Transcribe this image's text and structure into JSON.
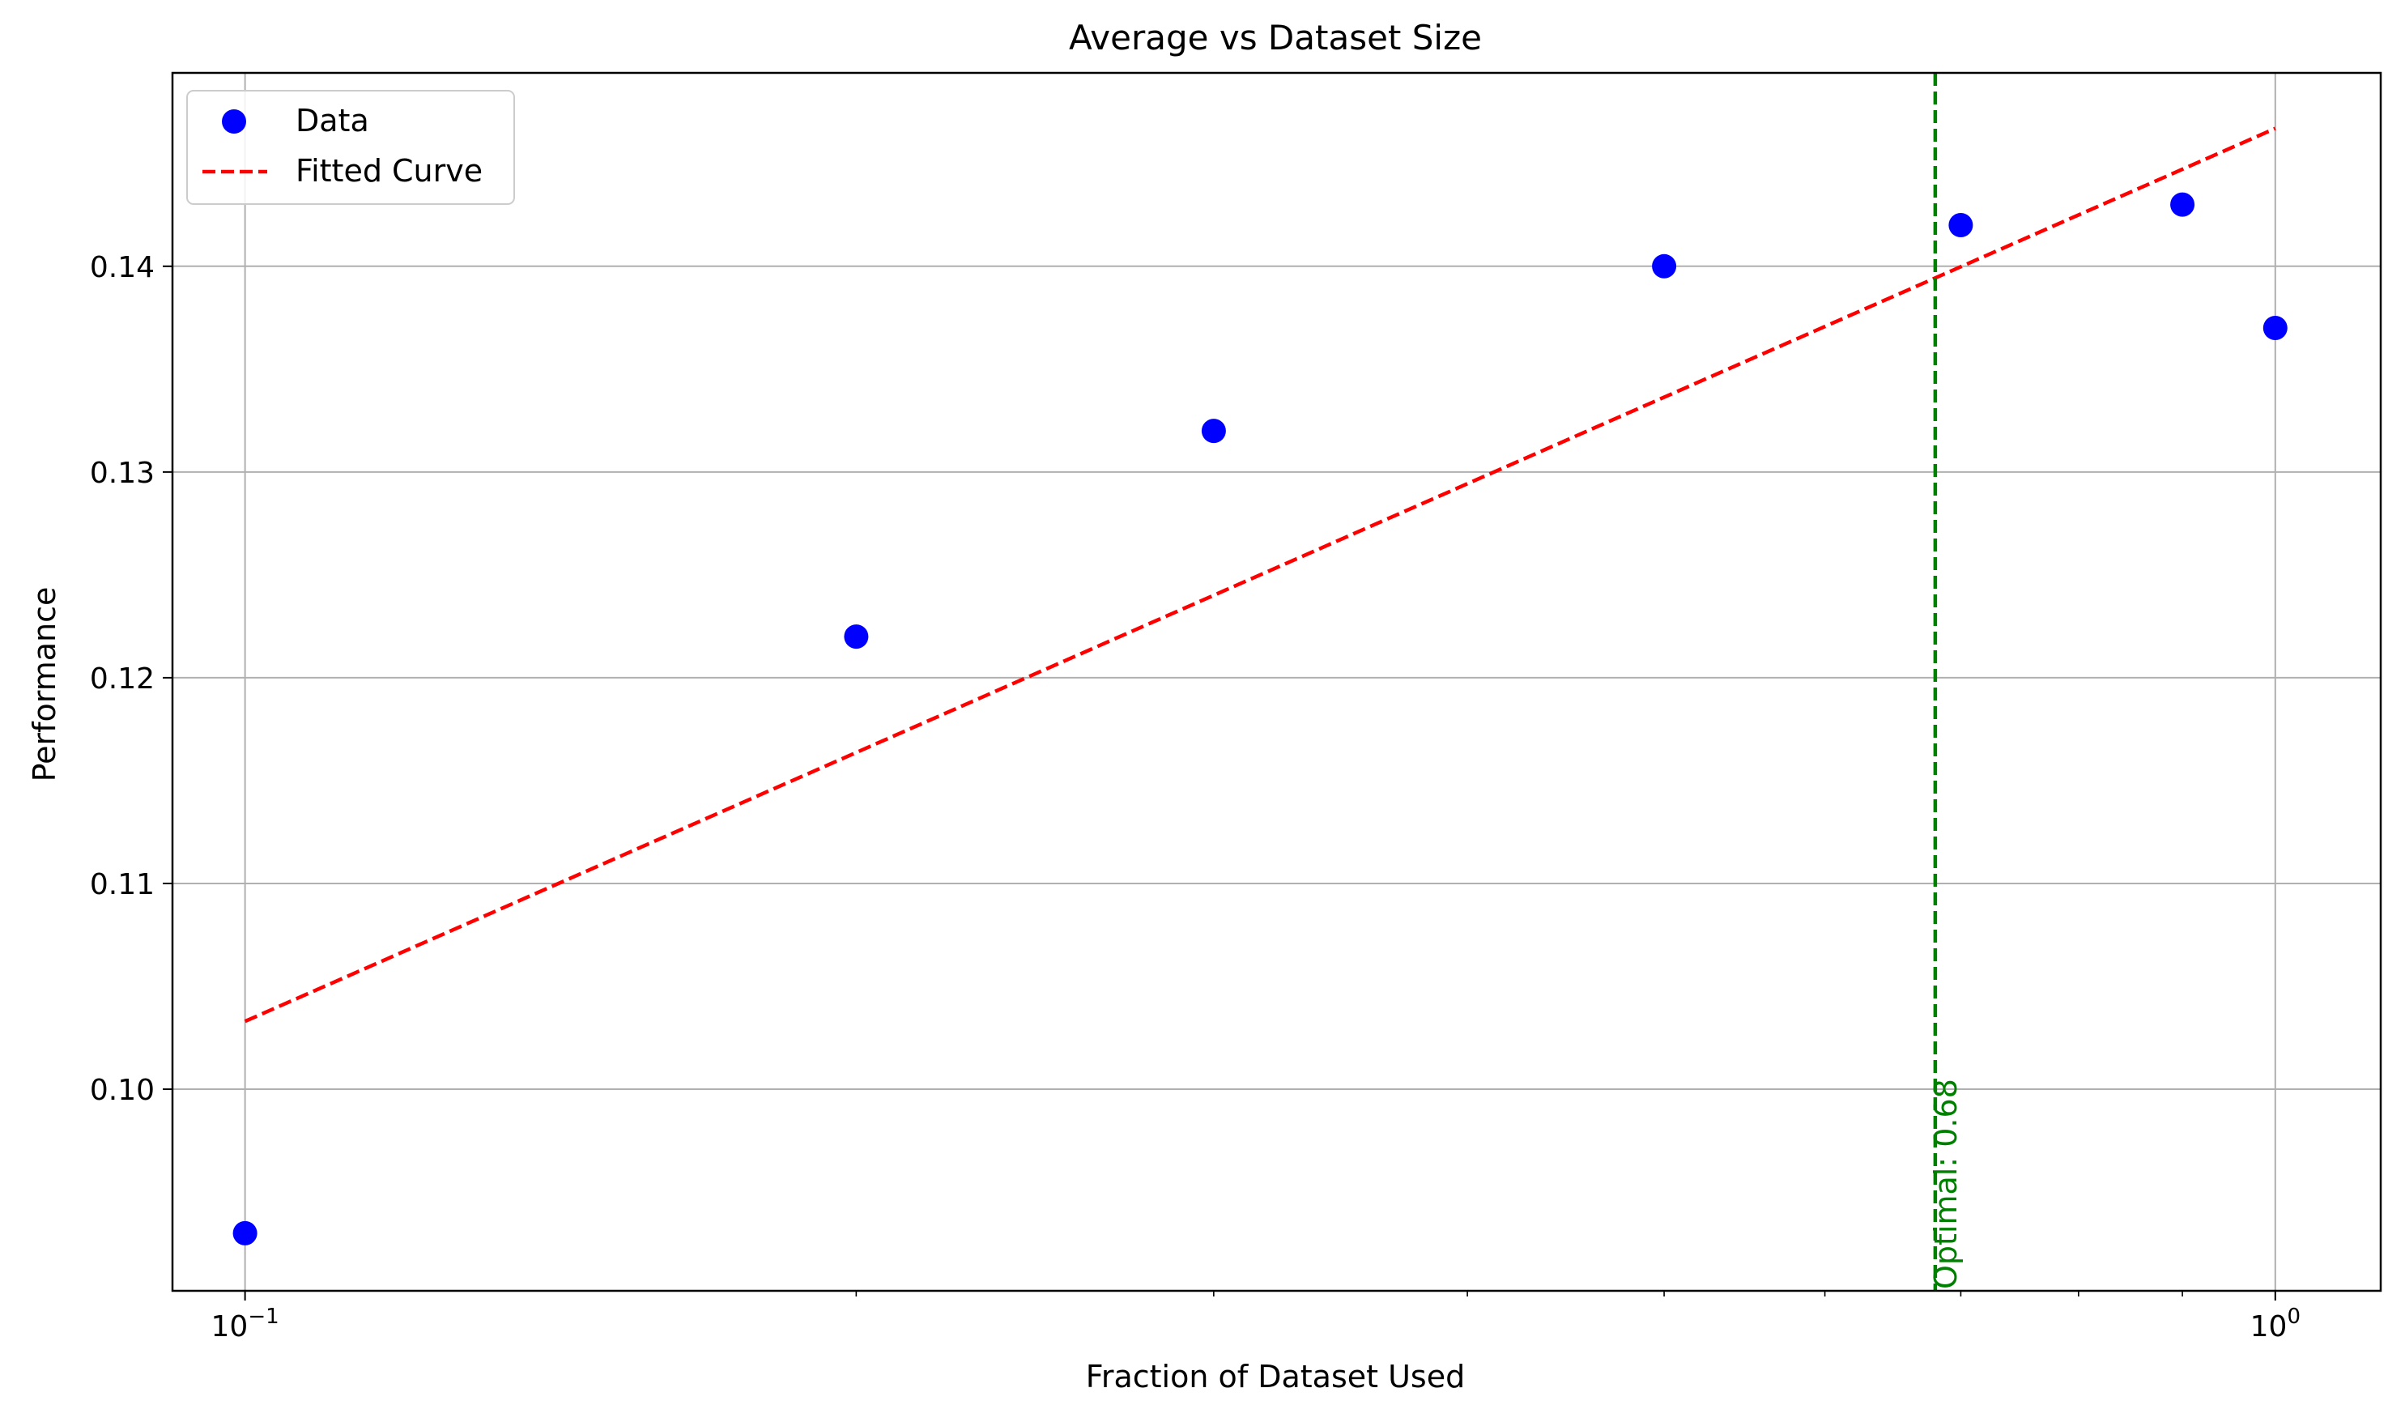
{
  "chart_data": {
    "type": "scatter",
    "title": "Average vs Dataset Size",
    "xlabel": "Fraction of Dataset Used",
    "ylabel": "Performance",
    "xscale": "log",
    "xlim": [
      0.0921,
      1.127
    ],
    "ylim": [
      0.0902,
      0.1494
    ],
    "x_ticks": [
      {
        "value": 0.1,
        "base": "10",
        "exponent": "−1"
      },
      {
        "value": 1.0,
        "base": "10",
        "exponent": "0"
      }
    ],
    "x_minor_ticks": [
      0.2,
      0.3,
      0.4,
      0.5,
      0.6,
      0.7,
      0.8,
      0.9
    ],
    "y_ticks": [
      {
        "value": 0.1,
        "label": "0.10"
      },
      {
        "value": 0.11,
        "label": "0.11"
      },
      {
        "value": 0.12,
        "label": "0.12"
      },
      {
        "value": 0.13,
        "label": "0.13"
      },
      {
        "value": 0.14,
        "label": "0.14"
      }
    ],
    "grid": true,
    "legend_position": "upper-left",
    "series": [
      {
        "name": "Data",
        "kind": "scatter",
        "color": "#0000ff",
        "x": [
          0.1,
          0.2,
          0.3,
          0.5,
          0.7,
          0.9,
          1.0
        ],
        "y": [
          0.093,
          0.122,
          0.132,
          0.14,
          0.142,
          0.143,
          0.137
        ]
      },
      {
        "name": "Fitted Curve",
        "kind": "line",
        "style": "dashed",
        "color": "#ff0000",
        "x": [
          0.1,
          1.0
        ],
        "y": [
          0.1033,
          0.1467
        ]
      }
    ],
    "vline": {
      "x": 0.68,
      "color": "#008000",
      "style": "dashed",
      "label": "Optimal: 0.68"
    }
  }
}
